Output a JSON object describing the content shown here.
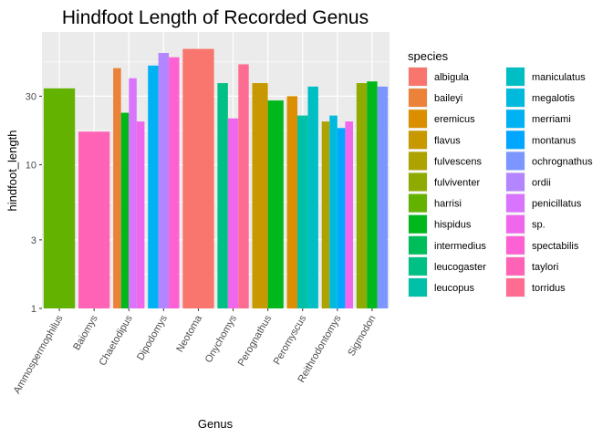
{
  "chart_data": {
    "type": "bar",
    "title": "Hindfoot Length of Recorded Genus",
    "xlabel": "Genus",
    "ylabel": "hindfoot_length",
    "yscale": "log",
    "ylim": [
      1,
      84
    ],
    "yticks": [
      1,
      3,
      10,
      30
    ],
    "grid": true,
    "legend_title": "species",
    "legend_position": "right",
    "categories": [
      "Ammospermophilus",
      "Baiomys",
      "Chaetodipus",
      "Dipodomys",
      "Neotoma",
      "Onychomys",
      "Perognathus",
      "Peromyscus",
      "Reithrodontomys",
      "Sigmodon"
    ],
    "species": [
      {
        "name": "albigula",
        "color": "#F8766D"
      },
      {
        "name": "baileyi",
        "color": "#EC8239"
      },
      {
        "name": "eremicus",
        "color": "#DB8E00"
      },
      {
        "name": "flavus",
        "color": "#C79800"
      },
      {
        "name": "fulvescens",
        "color": "#AEA200"
      },
      {
        "name": "fulviventer",
        "color": "#8FAA00"
      },
      {
        "name": "harrisi",
        "color": "#64B200"
      },
      {
        "name": "hispidus",
        "color": "#00B81B"
      },
      {
        "name": "intermedius",
        "color": "#00BD5C"
      },
      {
        "name": "leucogaster",
        "color": "#00C085"
      },
      {
        "name": "leucopus",
        "color": "#00C1A7"
      },
      {
        "name": "maniculatus",
        "color": "#00BFC4"
      },
      {
        "name": "megalotis",
        "color": "#00BADE"
      },
      {
        "name": "merriami",
        "color": "#00B2F3"
      },
      {
        "name": "montanus",
        "color": "#00A6FF"
      },
      {
        "name": "ochrognathus",
        "color": "#7C96FF"
      },
      {
        "name": "ordii",
        "color": "#B385FF"
      },
      {
        "name": "penicillatus",
        "color": "#D874FD"
      },
      {
        "name": "sp.",
        "color": "#EF67EB"
      },
      {
        "name": "spectabilis",
        "color": "#FD61D3"
      },
      {
        "name": "taylori",
        "color": "#FF63B6"
      },
      {
        "name": "torridus",
        "color": "#FF6C92"
      }
    ],
    "bars": [
      {
        "category": "Ammospermophilus",
        "species": "harrisi",
        "value": 34
      },
      {
        "category": "Baiomys",
        "species": "taylori",
        "value": 17
      },
      {
        "category": "Chaetodipus",
        "species": "baileyi",
        "value": 47
      },
      {
        "category": "Chaetodipus",
        "species": "hispidus",
        "value": 23
      },
      {
        "category": "Chaetodipus",
        "species": "penicillatus",
        "value": 40
      },
      {
        "category": "Chaetodipus",
        "species": "sp.",
        "value": 20
      },
      {
        "category": "Dipodomys",
        "species": "merriami",
        "value": 49
      },
      {
        "category": "Dipodomys",
        "species": "ordii",
        "value": 60
      },
      {
        "category": "Dipodomys",
        "species": "spectabilis",
        "value": 56
      },
      {
        "category": "Neotoma",
        "species": "albigula",
        "value": 64
      },
      {
        "category": "Onychomys",
        "species": "leucogaster",
        "value": 37
      },
      {
        "category": "Onychomys",
        "species": "sp.",
        "value": 21
      },
      {
        "category": "Onychomys",
        "species": "torridus",
        "value": 50
      },
      {
        "category": "Perognathus",
        "species": "flavus",
        "value": 37
      },
      {
        "category": "Perognathus",
        "species": "hispidus",
        "value": 28
      },
      {
        "category": "Peromyscus",
        "species": "eremicus",
        "value": 30
      },
      {
        "category": "Peromyscus",
        "species": "leucopus",
        "value": 22
      },
      {
        "category": "Peromyscus",
        "species": "maniculatus",
        "value": 35
      },
      {
        "category": "Reithrodontomys",
        "species": "fulvescens",
        "value": 20
      },
      {
        "category": "Reithrodontomys",
        "species": "megalotis",
        "value": 22
      },
      {
        "category": "Reithrodontomys",
        "species": "montanus",
        "value": 18
      },
      {
        "category": "Reithrodontomys",
        "species": "sp.",
        "value": 20
      },
      {
        "category": "Sigmodon",
        "species": "fulviventer",
        "value": 37
      },
      {
        "category": "Sigmodon",
        "species": "hispidus",
        "value": 38
      },
      {
        "category": "Sigmodon",
        "species": "ochrognathus",
        "value": 35
      }
    ]
  }
}
